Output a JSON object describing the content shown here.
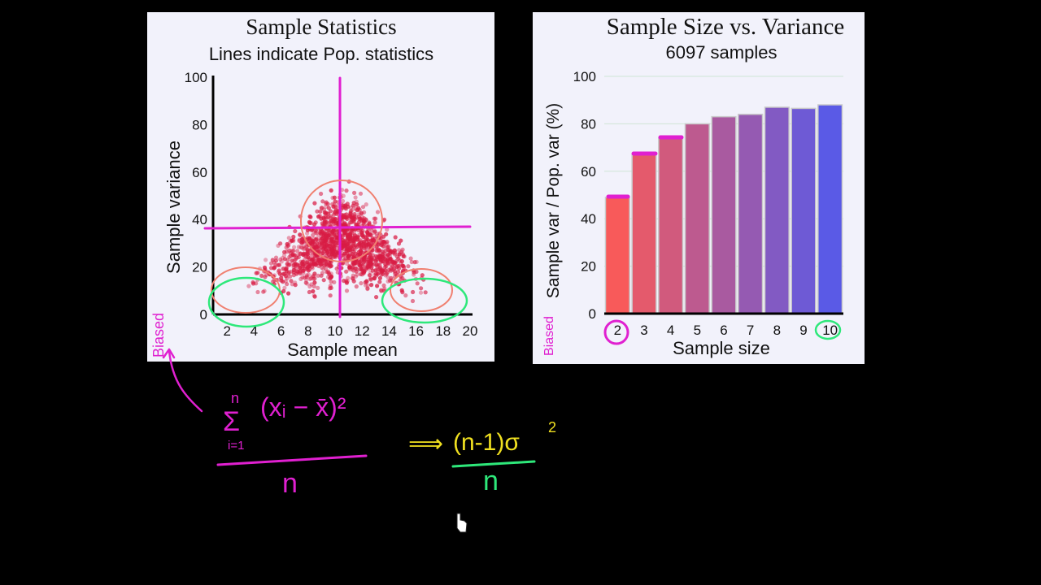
{
  "colors": {
    "background": "#000000",
    "panel": "#f2f2fb",
    "magenta": "#e020d0",
    "green": "#2ee87a",
    "yellow": "#f0e020",
    "salmon": "#f08070",
    "bar_start": "#f85a5a",
    "bar_end": "#5a5ae6",
    "dot": "#d81c44"
  },
  "chart_data": [
    {
      "type": "scatter",
      "title": "Sample Statistics",
      "subtitle": "Lines indicate Pop. statistics",
      "xlabel": "Sample mean",
      "ylabel": "Sample variance",
      "xlim": [
        0,
        20
      ],
      "ylim": [
        0,
        100
      ],
      "xticks": [
        2,
        4,
        6,
        8,
        10,
        12,
        14,
        16,
        18,
        20
      ],
      "yticks": [
        0,
        20,
        40,
        60,
        80,
        100
      ],
      "population_mean": 10.5,
      "population_variance": 37,
      "distribution": {
        "mean_center": 10.5,
        "mean_sd": 3.3,
        "variance_center": 34,
        "point_count": 1400
      }
    },
    {
      "type": "bar",
      "title": "Sample Size vs. Variance",
      "subtitle": "6097 samples",
      "xlabel": "Sample size",
      "ylabel": "Sample var / Pop. var (%)",
      "ylim": [
        0,
        100
      ],
      "yticks": [
        0,
        20,
        40,
        60,
        80,
        100
      ],
      "categories": [
        "2",
        "3",
        "4",
        "5",
        "6",
        "7",
        "8",
        "9",
        "10"
      ],
      "values": [
        49,
        67,
        74,
        80,
        83,
        84,
        87,
        86.5,
        88
      ]
    }
  ],
  "annotations": {
    "biased_left": "Biased",
    "biased_right": "Biased",
    "formula_sum_top": "n",
    "formula_sum_sign": "Σ",
    "formula_sum_bottom": "i=1",
    "formula_term": "(xᵢ − x̄)²",
    "formula_denominator": "n",
    "arrow": "⟹",
    "result_numerator": "(n-1)σ",
    "result_exponent": "2",
    "result_denominator": "n"
  }
}
